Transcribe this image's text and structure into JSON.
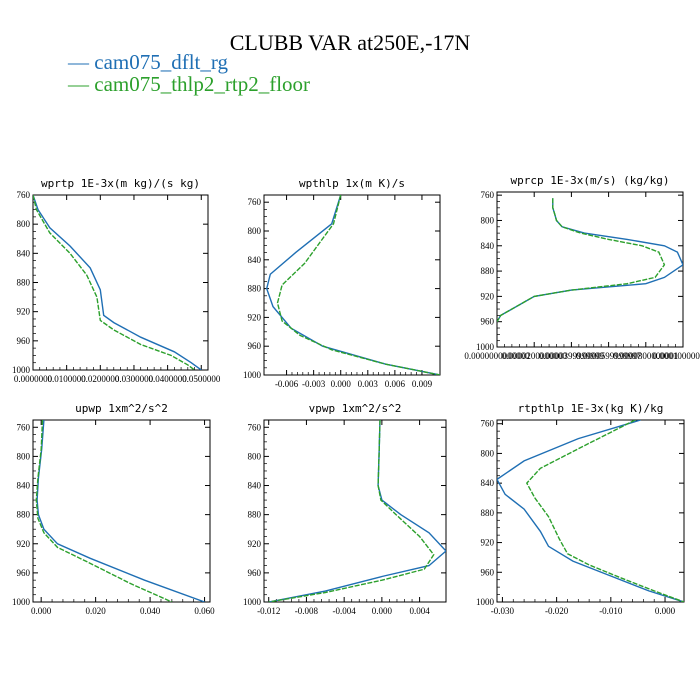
{
  "title": "CLUBB VAR at250E,-17N",
  "legend": [
    {
      "label": "— cam075_dflt_rg",
      "color": "#1f6fb4"
    },
    {
      "label": "— cam075_thlp2_rtp2_floor",
      "color": "#2ca02c"
    }
  ],
  "colors": {
    "series0": "#1f6fb4",
    "series1": "#2ca02c"
  },
  "chart_data": [
    {
      "type": "line",
      "title": "wprtp  1E-3x(m kg)/(s kg)",
      "xlim": [
        0,
        0.052
      ],
      "ylim": [
        1000,
        760
      ],
      "y_inverted": true,
      "xtick_labels": [
        "0.0000000",
        "0.0100000",
        "0.0200000",
        "0.0300000",
        "0.0400000",
        "0.0500000"
      ],
      "xticks": [
        0,
        0.01,
        0.02,
        0.03,
        0.04,
        0.05
      ],
      "ytick_labels": [
        "760",
        "800",
        "840",
        "880",
        "920",
        "960",
        "1000"
      ],
      "yticks": [
        760,
        800,
        840,
        880,
        920,
        960,
        1000
      ],
      "series": [
        {
          "x": [
            0.0,
            0.0015,
            0.005,
            0.011,
            0.017,
            0.02,
            0.021,
            0.024,
            0.032,
            0.042,
            0.047,
            0.05
          ],
          "y": [
            760,
            780,
            805,
            830,
            860,
            890,
            925,
            935,
            955,
            975,
            990,
            1000
          ]
        },
        {
          "x": [
            0.0,
            0.001,
            0.005,
            0.011,
            0.016,
            0.019,
            0.02,
            0.024,
            0.032,
            0.041,
            0.046,
            0.048
          ],
          "y": [
            760,
            780,
            812,
            840,
            870,
            900,
            932,
            945,
            965,
            980,
            993,
            1000
          ]
        }
      ]
    },
    {
      "type": "line",
      "title": "wpthlp  1x(m K)/s",
      "xlim": [
        -0.0085,
        0.011
      ],
      "ylim": [
        1000,
        750
      ],
      "y_inverted": true,
      "xtick_labels": [
        "-0.006",
        "-0.003",
        "0.000",
        "0.003",
        "0.006",
        "0.009"
      ],
      "xticks": [
        -0.006,
        -0.003,
        0,
        0.003,
        0.006,
        0.009
      ],
      "ytick_labels": [
        "760",
        "800",
        "840",
        "880",
        "920",
        "960",
        "1000"
      ],
      "yticks": [
        760,
        800,
        840,
        880,
        920,
        960,
        1000
      ],
      "series": [
        {
          "x": [
            0.0,
            -0.001,
            -0.005,
            -0.0078,
            -0.0082,
            -0.0075,
            -0.0055,
            -0.002,
            0.005,
            0.011
          ],
          "y": [
            750,
            790,
            830,
            860,
            880,
            905,
            935,
            960,
            985,
            1000
          ]
        },
        {
          "x": [
            0.0,
            -0.0008,
            -0.004,
            -0.0065,
            -0.007,
            -0.0065,
            -0.0045,
            -0.001,
            0.005,
            0.011
          ],
          "y": [
            750,
            790,
            845,
            875,
            900,
            925,
            945,
            965,
            985,
            1000
          ]
        }
      ]
    },
    {
      "type": "line",
      "title": "wprcp  1E-3x(m/s) (kg/kg)",
      "xlim": [
        0,
        0.0001
      ],
      "ylim": [
        1000,
        755
      ],
      "y_inverted": true,
      "xtick_labels": [
        "0.0000000000000",
        "0.0000200000000",
        "0.0000399999999",
        "0.0000599999997",
        "0.0000800000001",
        "0.000100000000"
      ],
      "xticks": [
        0,
        2e-05,
        4e-05,
        6e-05,
        8e-05,
        0.0001
      ],
      "ytick_labels": [
        "760",
        "800",
        "840",
        "880",
        "920",
        "960",
        "1000"
      ],
      "yticks": [
        760,
        800,
        840,
        880,
        920,
        960,
        1000
      ],
      "series": [
        {
          "x": [
            3e-05,
            3e-05,
            3e-05,
            3.1e-05,
            3.2e-05,
            3.5e-05,
            4.7e-05,
            7e-05,
            9e-05,
            9.7e-05,
            0.0001,
            9e-05,
            8e-05,
            4e-05,
            2e-05,
            2e-06,
            0.0
          ],
          "y": [
            765,
            770,
            780,
            790,
            800,
            810,
            820,
            830,
            840,
            850,
            870,
            890,
            900,
            910,
            920,
            950,
            960
          ]
        },
        {
          "x": [
            3e-05,
            3e-05,
            3e-05,
            3.1e-05,
            3.2e-05,
            3.5e-05,
            4.5e-05,
            6e-05,
            7.8e-05,
            8.7e-05,
            9e-05,
            8.5e-05,
            7e-05,
            4e-05,
            2e-05,
            2e-06,
            0.0
          ],
          "y": [
            765,
            770,
            780,
            790,
            800,
            810,
            820,
            830,
            840,
            850,
            870,
            890,
            900,
            910,
            920,
            950,
            960
          ]
        }
      ]
    },
    {
      "type": "line",
      "title": "upwp  1xm^2/s^2",
      "xlim": [
        -0.003,
        0.062
      ],
      "ylim": [
        1000,
        750
      ],
      "y_inverted": true,
      "xtick_labels": [
        "0.000",
        "0.020",
        "0.040",
        "0.060"
      ],
      "xticks": [
        0,
        0.02,
        0.04,
        0.06
      ],
      "ytick_labels": [
        "760",
        "800",
        "840",
        "880",
        "920",
        "960",
        "1000"
      ],
      "yticks": [
        760,
        800,
        840,
        880,
        920,
        960,
        1000
      ],
      "series": [
        {
          "x": [
            0.001,
            0.0002,
            -0.001,
            -0.0015,
            -0.001,
            0.001,
            0.006,
            0.018,
            0.038,
            0.06
          ],
          "y": [
            750,
            790,
            830,
            860,
            880,
            900,
            920,
            940,
            970,
            1000
          ]
        },
        {
          "x": [
            0.0005,
            0.0,
            -0.0012,
            -0.0018,
            -0.0012,
            0.001,
            0.006,
            0.017,
            0.033,
            0.048
          ],
          "y": [
            750,
            790,
            830,
            860,
            885,
            905,
            925,
            945,
            975,
            1000
          ]
        }
      ]
    },
    {
      "type": "line",
      "title": "vpwp  1xm^2/s^2",
      "xlim": [
        -0.0125,
        0.0068
      ],
      "ylim": [
        1000,
        750
      ],
      "y_inverted": true,
      "xtick_labels": [
        "-0.012",
        "-0.008",
        "-0.004",
        "0.000",
        "0.004"
      ],
      "xticks": [
        -0.012,
        -0.008,
        -0.004,
        0,
        0.004
      ],
      "ytick_labels": [
        "760",
        "800",
        "840",
        "880",
        "920",
        "960",
        "1000"
      ],
      "yticks": [
        760,
        800,
        840,
        880,
        920,
        960,
        1000
      ],
      "series": [
        {
          "x": [
            -0.0002,
            -0.0003,
            -0.0004,
            0.0,
            0.002,
            0.005,
            0.0068,
            0.005,
            0.0,
            -0.006,
            -0.012
          ],
          "y": [
            750,
            800,
            840,
            860,
            880,
            905,
            930,
            950,
            965,
            985,
            1000
          ]
        },
        {
          "x": [
            -0.0002,
            -0.0003,
            -0.0004,
            -0.0001,
            0.0015,
            0.004,
            0.0055,
            0.0045,
            0.0,
            -0.006,
            -0.012
          ],
          "y": [
            750,
            800,
            840,
            860,
            880,
            910,
            935,
            955,
            970,
            987,
            1000
          ]
        }
      ]
    },
    {
      "type": "line",
      "title": "rtpthlp  1E-3x(kg K)/kg",
      "xlim": [
        -0.031,
        0.0035
      ],
      "ylim": [
        1000,
        755
      ],
      "y_inverted": true,
      "xtick_labels": [
        "-0.030",
        "-0.020",
        "-0.010",
        "0.000"
      ],
      "xticks": [
        -0.03,
        -0.02,
        -0.01,
        0
      ],
      "ytick_labels": [
        "760",
        "800",
        "840",
        "880",
        "920",
        "960",
        "1000"
      ],
      "yticks": [
        760,
        800,
        840,
        880,
        920,
        960,
        1000
      ],
      "series": [
        {
          "x": [
            -0.0045,
            -0.016,
            -0.026,
            -0.031,
            -0.0295,
            -0.026,
            -0.023,
            -0.0215,
            -0.017,
            -0.01,
            -0.003,
            0.0035
          ],
          "y": [
            755,
            780,
            810,
            835,
            855,
            875,
            905,
            925,
            945,
            965,
            985,
            1000
          ]
        },
        {
          "x": [
            -0.0055,
            -0.015,
            -0.023,
            -0.0255,
            -0.024,
            -0.0215,
            -0.0195,
            -0.018,
            -0.014,
            -0.008,
            -0.002,
            0.0035
          ],
          "y": [
            755,
            790,
            820,
            840,
            860,
            885,
            915,
            935,
            950,
            968,
            985,
            1000
          ]
        }
      ]
    }
  ]
}
